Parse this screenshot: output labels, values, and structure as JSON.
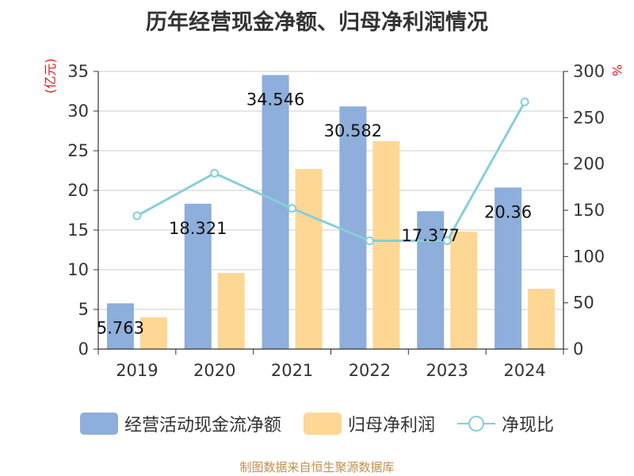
{
  "colors": {
    "bar1": "#8eaedb",
    "bar2": "#fed794",
    "line": "#86cfd9",
    "unit": "#e0181c",
    "source": "#c0904a"
  },
  "legend": {
    "series1": "经营活动现金流净额",
    "series2": "归母净利润",
    "series3": "净现比"
  },
  "source_text": "制图数据来自恒生聚源数据库",
  "chart_data": {
    "type": "bar",
    "title": "历年经营现金净额、归母净利润情况",
    "ylabel": "(亿元)",
    "y2label": "%",
    "ylim": [
      0,
      35
    ],
    "y2lim": [
      0,
      300
    ],
    "yticks": [
      "0",
      "5",
      "10",
      "15",
      "20",
      "25",
      "30",
      "35"
    ],
    "y2ticks": [
      "0",
      "50",
      "100",
      "150",
      "200",
      "250",
      "300"
    ],
    "categories": [
      "2019",
      "2020",
      "2021",
      "2022",
      "2023",
      "2024"
    ],
    "series": [
      {
        "name": "经营活动现金流净额",
        "type": "bar",
        "axis": "left",
        "values": [
          5.763,
          18.321,
          34.546,
          30.582,
          17.377,
          20.36
        ],
        "labels": [
          "5.763",
          "18.321",
          "34.546",
          "30.582",
          "17.377",
          "20.36"
        ]
      },
      {
        "name": "归母净利润",
        "type": "bar",
        "axis": "left",
        "values": [
          4.0,
          9.6,
          22.7,
          26.2,
          14.8,
          7.6
        ]
      },
      {
        "name": "净现比",
        "type": "line",
        "axis": "right",
        "values": [
          144,
          190,
          152,
          117,
          117,
          267
        ]
      }
    ]
  }
}
